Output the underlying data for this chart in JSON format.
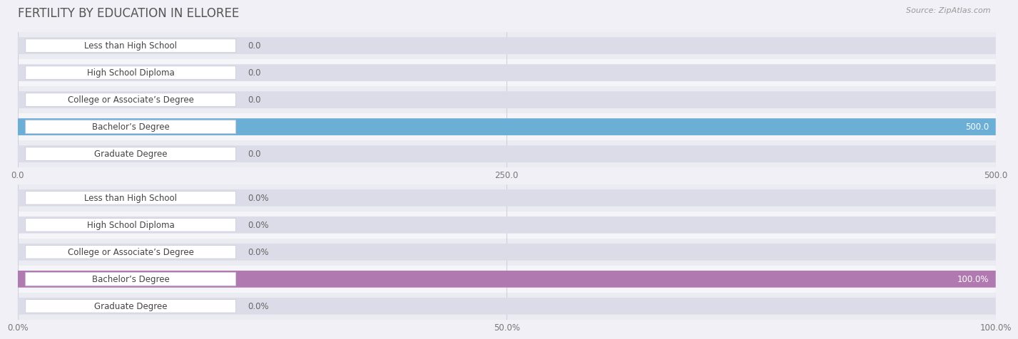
{
  "title": "FERTILITY BY EDUCATION IN ELLOREE",
  "source": "Source: ZipAtlas.com",
  "categories": [
    "Less than High School",
    "High School Diploma",
    "College or Associate’s Degree",
    "Bachelor’s Degree",
    "Graduate Degree"
  ],
  "chart1": {
    "values": [
      0.0,
      0.0,
      0.0,
      500.0,
      0.0
    ],
    "xlim": [
      0,
      500
    ],
    "xticks": [
      0.0,
      250.0,
      500.0
    ],
    "xtick_labels": [
      "0.0",
      "250.0",
      "500.0"
    ],
    "bar_color_normal": "#b8d0e8",
    "bar_color_highlight": "#6baed6",
    "label_color_highlight": "#ffffff",
    "value_color_normal": "#666666",
    "value_color_highlight": "#ffffff"
  },
  "chart2": {
    "values": [
      0.0,
      0.0,
      0.0,
      100.0,
      0.0
    ],
    "xlim": [
      0,
      100
    ],
    "xticks": [
      0.0,
      50.0,
      100.0
    ],
    "xtick_labels": [
      "0.0%",
      "50.0%",
      "100.0%"
    ],
    "bar_color_normal": "#cca8cc",
    "bar_color_highlight": "#b07ab0",
    "label_color_highlight": "#ffffff",
    "value_color_normal": "#666666",
    "value_color_highlight": "#ffffff"
  },
  "row_bg_colors": [
    "#ebebf2",
    "#f5f5f9"
  ],
  "bar_bg_color": "#dcdce8",
  "label_bg_color": "#ffffff",
  "label_border_color": "#ccccdd",
  "grid_color": "#d0d0e0",
  "bg_color": "#f0f0f6",
  "bar_height": 0.62,
  "bar_label_fontsize": 8.5,
  "tick_fontsize": 8.5,
  "title_fontsize": 12,
  "source_fontsize": 8
}
